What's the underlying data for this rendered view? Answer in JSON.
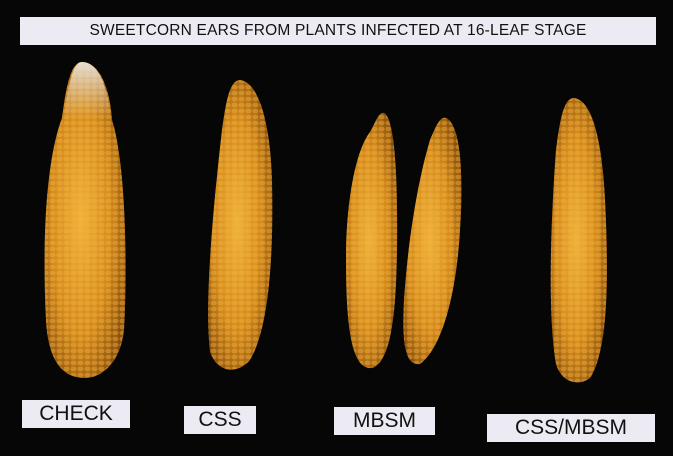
{
  "title": "SWEETCORN EARS FROM PLANTS INFECTED AT 16-LEAF STAGE",
  "labels": [
    "CHECK",
    "CSS",
    "MBSM",
    "CSS/MBSM"
  ],
  "colors": {
    "background": "#060606",
    "kernel": "#d9911f",
    "label_bg": "#ecebf3"
  }
}
